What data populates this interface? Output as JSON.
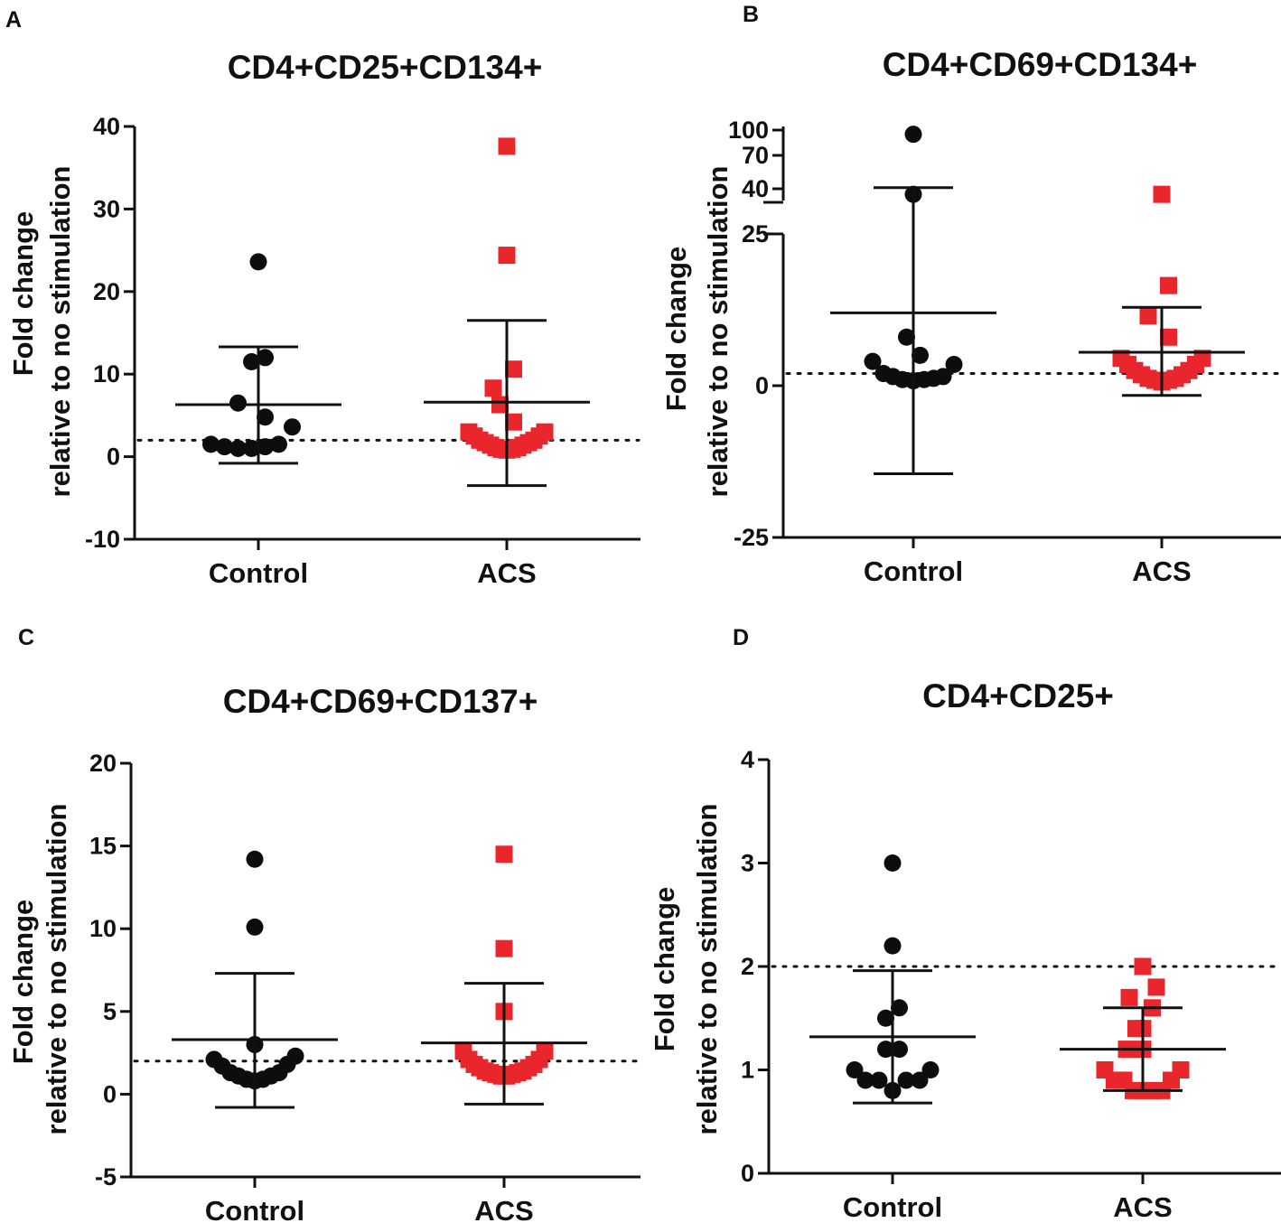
{
  "figure": {
    "colors": {
      "control": "#0d0d0d",
      "acs": "#e8262c",
      "axis": "#111111"
    },
    "marker_names": {
      "control": "circle",
      "acs": "square"
    }
  },
  "chart_data": [
    {
      "panel": "A",
      "type": "scatter",
      "title": "CD4+CD25+CD134+",
      "ylabel": [
        "Fold change",
        "relative to no stimulation"
      ],
      "categories": [
        "Control",
        "ACS"
      ],
      "ylim": [
        -10,
        40
      ],
      "yticks": [
        40,
        30,
        20,
        10,
        0,
        -10
      ],
      "reference_line": 2,
      "series": [
        {
          "name": "Control",
          "points": [
            [
              -0.35,
              1.5
            ],
            [
              -0.25,
              1.2
            ],
            [
              -0.15,
              1.0
            ],
            [
              -0.05,
              1.0
            ],
            [
              0.05,
              1.2
            ],
            [
              0.15,
              1.5
            ],
            [
              0.25,
              3.6
            ],
            [
              -0.15,
              6.5
            ],
            [
              0.05,
              4.8
            ],
            [
              -0.05,
              11.5
            ],
            [
              0.05,
              12.0
            ],
            [
              0.0,
              23.6
            ]
          ],
          "mean": 6.3,
          "sd_upper": 13.3,
          "sd_lower": -0.8
        },
        {
          "name": "ACS",
          "points": [
            [
              -0.28,
              3.0
            ],
            [
              -0.24,
              2.5
            ],
            [
              -0.2,
              2.0
            ],
            [
              -0.16,
              1.7
            ],
            [
              -0.12,
              1.4
            ],
            [
              -0.08,
              1.1
            ],
            [
              -0.04,
              0.9
            ],
            [
              0.0,
              0.8
            ],
            [
              0.04,
              0.9
            ],
            [
              0.08,
              1.1
            ],
            [
              0.12,
              1.4
            ],
            [
              0.16,
              1.7
            ],
            [
              0.2,
              2.0
            ],
            [
              0.24,
              2.5
            ],
            [
              0.28,
              3.0
            ],
            [
              -0.1,
              8.3
            ],
            [
              -0.05,
              6.3
            ],
            [
              0.05,
              4.2
            ],
            [
              0.05,
              10.6
            ],
            [
              0.0,
              24.4
            ],
            [
              0.0,
              37.6
            ]
          ],
          "mean": 6.6,
          "sd_upper": 16.5,
          "sd_lower": -3.5
        }
      ]
    },
    {
      "panel": "B",
      "type": "scatter",
      "title": "CD4+CD69+CD134+",
      "ylabel": [
        "Fold change",
        "relative to no stimulation"
      ],
      "categories": [
        "Control",
        "ACS"
      ],
      "axis_break": {
        "lower_range": [
          -25,
          25
        ],
        "upper_ticks": [
          40,
          70,
          100
        ]
      },
      "yticks": [
        100,
        70,
        40,
        25,
        0,
        -25
      ],
      "reference_line": 2,
      "series": [
        {
          "name": "Control",
          "points": [
            [
              -0.3,
              4.0
            ],
            [
              -0.22,
              2.0
            ],
            [
              -0.15,
              1.5
            ],
            [
              -0.08,
              1.0
            ],
            [
              0.0,
              0.8
            ],
            [
              0.08,
              1.0
            ],
            [
              0.15,
              1.2
            ],
            [
              0.22,
              1.5
            ],
            [
              0.3,
              3.5
            ],
            [
              -0.05,
              8.0
            ],
            [
              0.05,
              5.0
            ],
            [
              0.0,
              35.0
            ],
            [
              0.0,
              95.0
            ]
          ],
          "mean": 12.0,
          "sd_upper": 41.0,
          "sd_lower": -14.5
        },
        {
          "name": "ACS",
          "points": [
            [
              -0.3,
              4.5
            ],
            [
              -0.25,
              3.5
            ],
            [
              -0.2,
              2.5
            ],
            [
              -0.15,
              1.8
            ],
            [
              -0.1,
              1.2
            ],
            [
              -0.05,
              0.9
            ],
            [
              0.0,
              0.6
            ],
            [
              0.05,
              0.9
            ],
            [
              0.1,
              1.2
            ],
            [
              0.15,
              1.8
            ],
            [
              0.2,
              2.5
            ],
            [
              0.25,
              3.5
            ],
            [
              0.3,
              4.5
            ],
            [
              -0.1,
              11.5
            ],
            [
              0.05,
              8.0
            ],
            [
              0.05,
              16.5
            ],
            [
              0.0,
              35.0
            ]
          ],
          "mean": 5.5,
          "sd_upper": 12.9,
          "sd_lower": -1.6
        }
      ]
    },
    {
      "panel": "C",
      "type": "scatter",
      "title": "CD4+CD69+CD137+",
      "ylabel": [
        "Fold change",
        "relative to no stimulation"
      ],
      "categories": [
        "Control",
        "ACS"
      ],
      "ylim": [
        -5,
        20
      ],
      "yticks": [
        20,
        15,
        10,
        5,
        0,
        -5
      ],
      "reference_line": 2,
      "series": [
        {
          "name": "Control",
          "points": [
            [
              -0.3,
              2.1
            ],
            [
              -0.24,
              1.7
            ],
            [
              -0.18,
              1.3
            ],
            [
              -0.12,
              1.1
            ],
            [
              -0.06,
              0.9
            ],
            [
              0.0,
              0.8
            ],
            [
              0.06,
              0.9
            ],
            [
              0.12,
              1.1
            ],
            [
              0.18,
              1.3
            ],
            [
              0.24,
              1.8
            ],
            [
              0.3,
              2.3
            ],
            [
              0.0,
              3.0
            ],
            [
              0.0,
              10.1
            ],
            [
              0.0,
              14.2
            ]
          ],
          "mean": 3.3,
          "sd_upper": 7.3,
          "sd_lower": -0.8
        },
        {
          "name": "ACS",
          "points": [
            [
              -0.3,
              2.6
            ],
            [
              -0.26,
              2.1
            ],
            [
              -0.22,
              1.8
            ],
            [
              -0.18,
              1.6
            ],
            [
              -0.14,
              1.4
            ],
            [
              -0.1,
              1.3
            ],
            [
              -0.06,
              1.2
            ],
            [
              -0.02,
              1.1
            ],
            [
              0.02,
              1.1
            ],
            [
              0.06,
              1.2
            ],
            [
              0.1,
              1.3
            ],
            [
              0.14,
              1.4
            ],
            [
              0.18,
              1.6
            ],
            [
              0.22,
              1.8
            ],
            [
              0.26,
              2.1
            ],
            [
              0.3,
              2.6
            ],
            [
              0.0,
              5.0
            ],
            [
              0.0,
              8.8
            ],
            [
              0.0,
              14.5
            ]
          ],
          "mean": 3.1,
          "sd_upper": 6.7,
          "sd_lower": -0.6
        }
      ]
    },
    {
      "panel": "D",
      "type": "scatter",
      "title": "CD4+CD25+",
      "ylabel": [
        "Fold change",
        "relative to no stimulation"
      ],
      "categories": [
        "Control",
        "ACS"
      ],
      "ylim": [
        0,
        4
      ],
      "yticks": [
        4,
        3,
        2,
        1,
        0
      ],
      "reference_line": 2,
      "series": [
        {
          "name": "Control",
          "points": [
            [
              -0.28,
              1.0
            ],
            [
              -0.2,
              0.9
            ],
            [
              -0.1,
              0.9
            ],
            [
              0.0,
              0.8
            ],
            [
              0.1,
              0.9
            ],
            [
              0.2,
              0.9
            ],
            [
              0.28,
              1.0
            ],
            [
              -0.05,
              1.2
            ],
            [
              0.05,
              1.2
            ],
            [
              -0.05,
              1.5
            ],
            [
              0.05,
              1.6
            ],
            [
              0.0,
              2.2
            ],
            [
              0.0,
              3.0
            ]
          ],
          "mean": 1.32,
          "sd_upper": 1.96,
          "sd_lower": 0.68
        },
        {
          "name": "ACS",
          "points": [
            [
              -0.28,
              1.0
            ],
            [
              -0.21,
              0.9
            ],
            [
              -0.14,
              0.9
            ],
            [
              -0.07,
              0.8
            ],
            [
              0.0,
              0.8
            ],
            [
              0.07,
              0.8
            ],
            [
              0.14,
              0.8
            ],
            [
              0.21,
              0.9
            ],
            [
              0.28,
              1.0
            ],
            [
              0.0,
              1.2
            ],
            [
              0.0,
              1.4
            ],
            [
              0.07,
              1.6
            ],
            [
              -0.1,
              1.7
            ],
            [
              0.1,
              1.8
            ],
            [
              -0.05,
              1.4
            ],
            [
              0.0,
              2.0
            ],
            [
              -0.12,
              1.2
            ]
          ],
          "mean": 1.2,
          "sd_upper": 1.6,
          "sd_lower": 0.8
        }
      ]
    }
  ]
}
